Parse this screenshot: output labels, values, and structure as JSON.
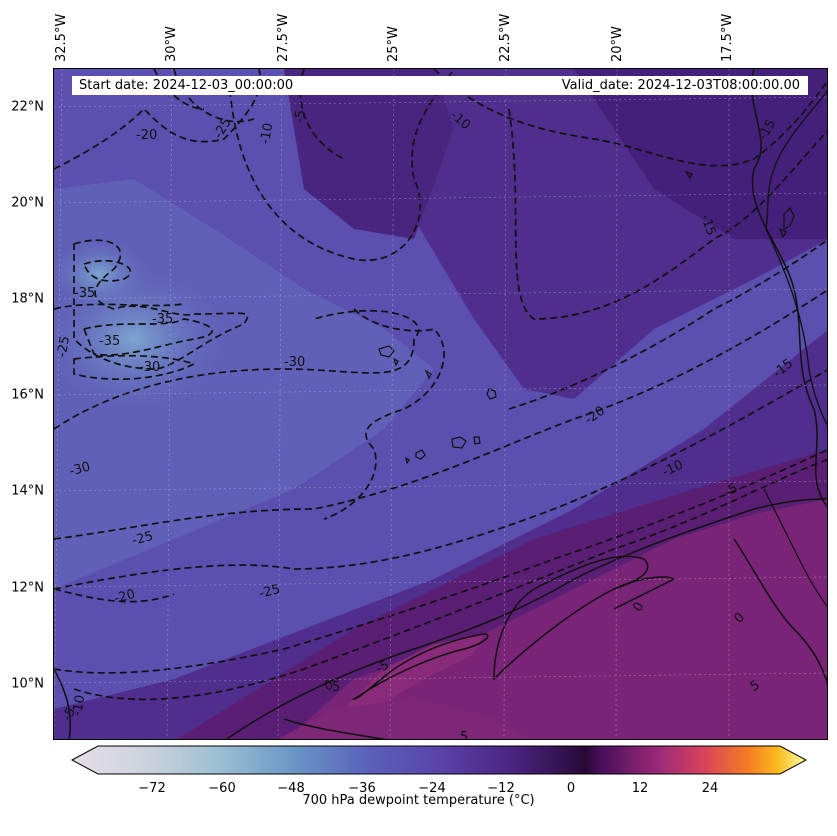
{
  "header": {
    "start_date": "Start date: 2024-12-03_00:00:00",
    "valid_date": "Valid_date: 2024-12-03T08:00:00.00"
  },
  "axes": {
    "lat_labels": [
      "22°N",
      "20°N",
      "18°N",
      "16°N",
      "14°N",
      "12°N",
      "10°N"
    ],
    "lon_labels": [
      "32.5°W",
      "30°W",
      "27.5°W",
      "25°W",
      "22.5°W",
      "20°W",
      "17.5°W"
    ]
  },
  "colorbar": {
    "label": "700 hPa dewpoint temperature (°C)",
    "ticks": [
      "−72",
      "−60",
      "−48",
      "−36",
      "−24",
      "−12",
      "0",
      "12",
      "24"
    ],
    "range": [
      -84,
      36
    ],
    "colors": [
      "#e5dde6",
      "#b0c9d6",
      "#6a98c6",
      "#5a57b8",
      "#5a35a0",
      "#3a0d4a",
      "#7a1f7e",
      "#c0316a",
      "#f06a2c",
      "#fbb81c",
      "#fcfe9e"
    ]
  },
  "contour_labels": [
    "-20",
    "-25",
    "-10",
    "-5",
    "-10",
    "-15",
    "-15",
    "-35",
    "-35",
    "-25",
    "-35",
    "-30",
    "-30",
    "-15",
    "-20",
    "-10",
    "-5",
    "-30",
    "-25",
    "-20",
    "-25",
    "0",
    "0",
    "-5",
    "5",
    "5",
    "5",
    "0",
    "-5",
    "-10"
  ],
  "map_colors": {
    "dry": "#6b8fc9",
    "mid": "#5a4aa8",
    "moist": "#4b2a86",
    "wet": "#6d1f78",
    "line": "#111111"
  }
}
